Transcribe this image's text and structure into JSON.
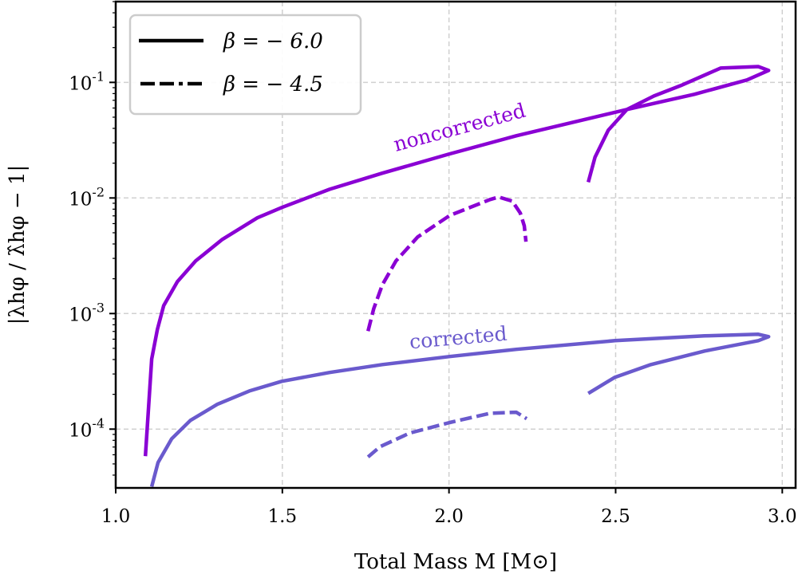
{
  "chart_data": {
    "type": "line",
    "xlabel": "Total Mass M [M⊙]",
    "ylabel": "|λhφ / λ̂hφ − 1|",
    "xlim": [
      1.0,
      3.04
    ],
    "ylim": [
      3.1e-05,
      0.5
    ],
    "yscale": "log",
    "grid": true,
    "legend_position": "top-left",
    "x_ticks": [
      "1.0",
      "1.5",
      "2.0",
      "2.5",
      "3.0"
    ],
    "x_tick_values": [
      1.0,
      1.5,
      2.0,
      2.5,
      3.0
    ],
    "y_ticks": [
      {
        "value": 0.1,
        "base": "10",
        "exp": "-1"
      },
      {
        "value": 0.01,
        "base": "10",
        "exp": "-2"
      },
      {
        "value": 0.001,
        "base": "10",
        "exp": "-3"
      },
      {
        "value": 0.0001,
        "base": "10",
        "exp": "-4"
      }
    ],
    "legend": [
      {
        "label": "β = − 6.0",
        "style": "solid"
      },
      {
        "label": "β = − 4.5",
        "style": "dashed"
      }
    ],
    "annotations": [
      {
        "text": "noncorrected",
        "color": "#8a00d4",
        "x": 1.86,
        "y": 0.028
      },
      {
        "text": "corrected",
        "color": "#6a5acd",
        "x": 1.86,
        "y": 0.00068
      }
    ],
    "series": [
      {
        "group": "noncorrected",
        "beta": -6.0,
        "style": "solid",
        "color": "#8a00d4",
        "x": [
          1.089,
          1.108,
          1.125,
          1.144,
          1.185,
          1.24,
          1.32,
          1.425,
          1.498,
          1.642,
          1.8,
          1.998,
          2.202,
          2.334,
          2.534,
          2.736,
          2.894,
          2.959,
          2.928,
          2.815,
          2.695,
          2.615,
          2.534,
          2.478,
          2.438,
          2.418
        ],
        "y": [
          5.83e-05,
          0.000404,
          0.000728,
          0.00117,
          0.00189,
          0.00285,
          0.00438,
          0.00673,
          0.00826,
          0.0119,
          0.0164,
          0.0239,
          0.0345,
          0.0425,
          0.0583,
          0.0788,
          0.105,
          0.127,
          0.137,
          0.133,
          0.0938,
          0.0763,
          0.0583,
          0.0386,
          0.0225,
          0.0137
        ]
      },
      {
        "group": "noncorrected",
        "beta": -4.5,
        "style": "dashed",
        "color": "#8a00d4",
        "x": [
          1.757,
          1.774,
          1.8,
          1.841,
          1.906,
          2.002,
          2.123,
          2.149,
          2.19,
          2.214,
          2.226,
          2.231
        ],
        "y": [
          0.000705,
          0.0011,
          0.00177,
          0.00285,
          0.00459,
          0.00705,
          0.00969,
          0.0102,
          0.00938,
          0.0074,
          0.00574,
          0.00418
        ]
      },
      {
        "group": "corrected",
        "beta": -6.0,
        "style": "solid",
        "color": "#6a5acd",
        "x": [
          1.108,
          1.127,
          1.168,
          1.224,
          1.305,
          1.401,
          1.498,
          1.642,
          1.8,
          2.002,
          2.202,
          2.498,
          2.767,
          2.928,
          2.959,
          2.928,
          2.767,
          2.606,
          2.498,
          2.418
        ],
        "y": [
          3.18e-05,
          5.13e-05,
          8.26e-05,
          0.000119,
          0.000164,
          0.000214,
          0.000259,
          0.000309,
          0.000362,
          0.000425,
          0.00049,
          0.000583,
          0.000641,
          0.000662,
          0.000631,
          0.000583,
          0.000474,
          0.000362,
          0.000281,
          0.000204
        ]
      },
      {
        "group": "corrected",
        "beta": -4.5,
        "style": "dashed",
        "color": "#6a5acd",
        "x": [
          1.757,
          1.793,
          1.882,
          2.002,
          2.123,
          2.202,
          2.233
        ],
        "y": [
          5.74e-05,
          7.05e-05,
          9.25e-05,
          0.000114,
          0.000137,
          0.00014,
          0.000123
        ]
      }
    ]
  }
}
